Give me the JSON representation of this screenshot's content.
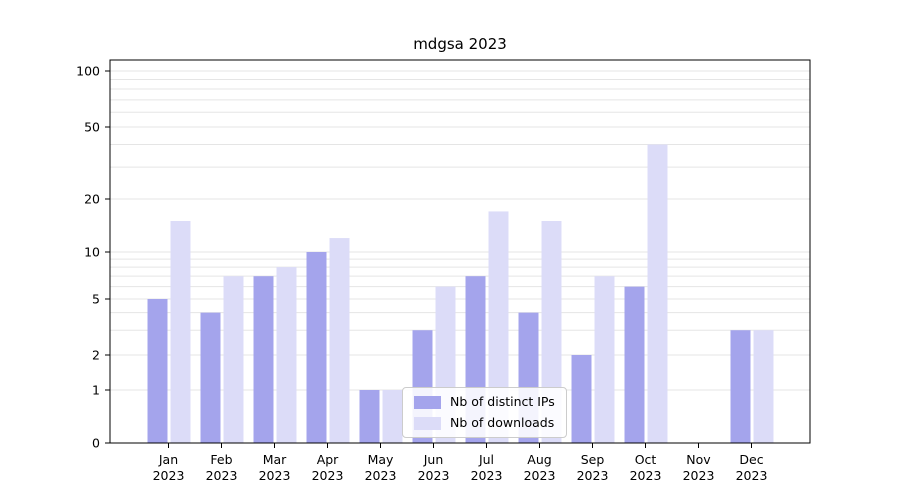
{
  "chart_data": {
    "type": "bar",
    "title": "mdgsa 2023",
    "yscale": "symlog",
    "grid": true,
    "background": "#ffffff",
    "gridline_color": "#e5e5e5",
    "categories": [
      [
        "Jan",
        "2023"
      ],
      [
        "Feb",
        "2023"
      ],
      [
        "Mar",
        "2023"
      ],
      [
        "Apr",
        "2023"
      ],
      [
        "May",
        "2023"
      ],
      [
        "Jun",
        "2023"
      ],
      [
        "Jul",
        "2023"
      ],
      [
        "Aug",
        "2023"
      ],
      [
        "Sep",
        "2023"
      ],
      [
        "Oct",
        "2023"
      ],
      [
        "Nov",
        "2023"
      ],
      [
        "Dec",
        "2023"
      ]
    ],
    "series": [
      {
        "name": "Nb of distinct IPs",
        "color": "#a4a4ec",
        "values": [
          5,
          4,
          7,
          10,
          1,
          3,
          7,
          4,
          2,
          6,
          0,
          3
        ]
      },
      {
        "name": "Nb of downloads",
        "color": "#dcdcf8",
        "values": [
          15,
          7,
          8,
          12,
          1,
          6,
          17,
          15,
          7,
          40,
          0,
          3
        ]
      }
    ],
    "yticks": [
      0,
      1,
      2,
      5,
      10,
      20,
      50,
      100
    ],
    "ylim": [
      0,
      100
    ],
    "legend_position": "lower-center"
  }
}
